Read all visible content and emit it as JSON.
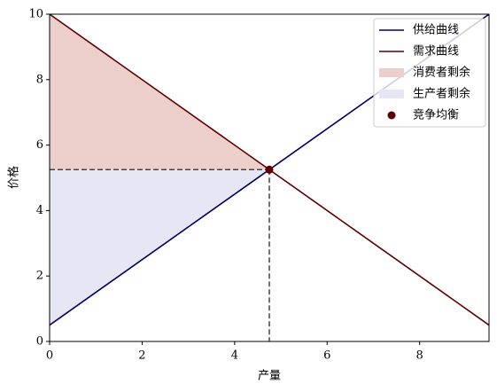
{
  "chart_data": {
    "type": "line",
    "x_label": "产量",
    "y_label": "价格",
    "xlim": [
      0,
      9.5
    ],
    "ylim": [
      0,
      10
    ],
    "xticks": [
      0,
      2,
      4,
      6,
      8
    ],
    "yticks": [
      0,
      2,
      4,
      6,
      8,
      10
    ],
    "legend": "upper right",
    "series": [
      {
        "name": "供给曲线",
        "kind": "line",
        "color": "#000066",
        "x": [
          0,
          9.5
        ],
        "values": [
          0.5,
          10
        ]
      },
      {
        "name": "需求曲线",
        "kind": "line",
        "color": "#5c0000",
        "x": [
          0,
          9.5
        ],
        "values": [
          10,
          0.5
        ]
      },
      {
        "name": "消费者剩余",
        "kind": "area",
        "color": "#eccfcb",
        "x": [
          0,
          4.75
        ],
        "upper": [
          10,
          5.25
        ],
        "lower": [
          5.25,
          5.25
        ]
      },
      {
        "name": "生产者剩余",
        "kind": "area",
        "color": "#e6e6f4",
        "x": [
          0,
          4.75
        ],
        "upper": [
          5.25,
          5.25
        ],
        "lower": [
          0.5,
          5.25
        ]
      },
      {
        "name": "竞争均衡",
        "kind": "scatter",
        "color": "#5c0000",
        "x": [
          4.75
        ],
        "values": [
          5.25
        ]
      }
    ]
  }
}
